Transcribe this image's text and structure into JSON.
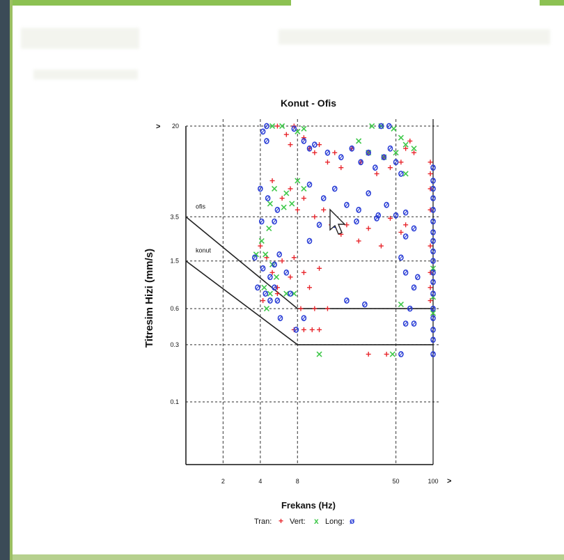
{
  "chart_data": {
    "type": "scatter",
    "title": "Konut - Ofis",
    "xlabel": "Frekans (Hz)",
    "ylabel": "Titresim Hizi (mm/s)",
    "x_scale": "log",
    "y_scale": "log",
    "xlim": [
      1.0,
      100
    ],
    "ylim": [
      0.03,
      20
    ],
    "x_ticks": [
      "2",
      "4",
      "8",
      "50",
      "100"
    ],
    "x_tick_values": [
      2,
      4,
      8,
      50,
      100
    ],
    "y_ticks": [
      "20",
      "3.5",
      "1.5",
      "0.6",
      "0.3",
      "0.1"
    ],
    "y_tick_values": [
      20,
      3.5,
      1.5,
      0.6,
      0.3,
      0.1
    ],
    "axis_arrow": ">",
    "grid": true,
    "limit_lines": [
      {
        "name": "ofis",
        "points": [
          [
            1.0,
            3.5
          ],
          [
            8,
            0.6
          ],
          [
            100,
            0.6
          ]
        ]
      },
      {
        "name": "konut",
        "points": [
          [
            1.0,
            1.5
          ],
          [
            8,
            0.3
          ],
          [
            100,
            0.3
          ]
        ]
      }
    ],
    "legend": {
      "placement": "bottom",
      "items": [
        {
          "label": "Tran:",
          "symbol": "+",
          "color": "#e8262c"
        },
        {
          "label": "Vert:",
          "symbol": "x",
          "color": "#3fc84a"
        },
        {
          "label": "Long:",
          "symbol": "ø",
          "color": "#2b3fd6"
        }
      ]
    },
    "series": [
      {
        "name": "Tran",
        "symbol": "+",
        "color": "#e8262c",
        "points": [
          [
            5.5,
            20
          ],
          [
            7.5,
            20
          ],
          [
            6.5,
            17
          ],
          [
            7,
            14
          ],
          [
            9,
            16
          ],
          [
            10,
            13
          ],
          [
            11,
            12
          ],
          [
            12,
            14
          ],
          [
            14,
            10
          ],
          [
            16,
            12
          ],
          [
            18,
            9
          ],
          [
            22,
            13
          ],
          [
            26,
            10
          ],
          [
            30,
            12
          ],
          [
            35,
            8
          ],
          [
            40,
            11
          ],
          [
            45,
            9
          ],
          [
            55,
            10
          ],
          [
            60,
            13
          ],
          [
            65,
            15
          ],
          [
            70,
            12
          ],
          [
            5,
            7
          ],
          [
            6,
            5
          ],
          [
            7,
            6
          ],
          [
            8,
            4
          ],
          [
            9,
            5
          ],
          [
            11,
            3.5
          ],
          [
            13,
            4
          ],
          [
            15,
            3
          ],
          [
            18,
            2.5
          ],
          [
            20,
            3
          ],
          [
            25,
            2.2
          ],
          [
            30,
            2.8
          ],
          [
            38,
            2
          ],
          [
            45,
            3.4
          ],
          [
            55,
            2.6
          ],
          [
            60,
            3
          ],
          [
            4,
            2
          ],
          [
            4.5,
            1.6
          ],
          [
            5,
            1.2
          ],
          [
            5.5,
            0.9
          ],
          [
            6,
            1.5
          ],
          [
            7,
            1.1
          ],
          [
            7.5,
            1.6
          ],
          [
            9,
            1.2
          ],
          [
            10,
            0.9
          ],
          [
            12,
            1.3
          ],
          [
            4.2,
            0.7
          ],
          [
            5.5,
            0.8
          ],
          [
            8.5,
            0.6
          ],
          [
            11,
            0.6
          ],
          [
            14,
            0.6
          ],
          [
            7.5,
            0.4
          ],
          [
            9,
            0.4
          ],
          [
            10.5,
            0.4
          ],
          [
            12,
            0.4
          ],
          [
            95,
            10
          ],
          [
            95,
            8
          ],
          [
            95,
            6
          ],
          [
            95,
            4
          ],
          [
            95,
            2
          ],
          [
            95,
            1.2
          ],
          [
            95,
            0.9
          ],
          [
            95,
            0.7
          ],
          [
            30,
            0.25
          ],
          [
            42,
            0.25
          ]
        ]
      },
      {
        "name": "Vert",
        "symbol": "x",
        "color": "#3fc84a",
        "points": [
          [
            5,
            20
          ],
          [
            6,
            20
          ],
          [
            8,
            18
          ],
          [
            9,
            19
          ],
          [
            32,
            20
          ],
          [
            38,
            20
          ],
          [
            48,
            19
          ],
          [
            55,
            16
          ],
          [
            60,
            14
          ],
          [
            25,
            15
          ],
          [
            30,
            12
          ],
          [
            40,
            11
          ],
          [
            50,
            12
          ],
          [
            70,
            13
          ],
          [
            60,
            8
          ],
          [
            4.8,
            4.5
          ],
          [
            5.2,
            6
          ],
          [
            6.2,
            4.2
          ],
          [
            6.5,
            5.5
          ],
          [
            8,
            7
          ],
          [
            9,
            6
          ],
          [
            7.2,
            4.5
          ],
          [
            3.7,
            1.7
          ],
          [
            4.1,
            2.2
          ],
          [
            4.4,
            1.7
          ],
          [
            4.7,
            2.8
          ],
          [
            5,
            1.4
          ],
          [
            5.4,
            1.1
          ],
          [
            4.3,
            0.9
          ],
          [
            4.5,
            0.6
          ],
          [
            4.8,
            0.8
          ],
          [
            6.5,
            0.8
          ],
          [
            7.5,
            0.8
          ],
          [
            55,
            0.65
          ],
          [
            100,
            0.75
          ],
          [
            100,
            1.3
          ],
          [
            100,
            0.55
          ],
          [
            12,
            0.25
          ],
          [
            47,
            0.25
          ]
        ]
      },
      {
        "name": "Long",
        "symbol": "ø",
        "color": "#2b3fd6",
        "points": [
          [
            4.5,
            20
          ],
          [
            4.2,
            18
          ],
          [
            4.5,
            15
          ],
          [
            7.5,
            19
          ],
          [
            9,
            15
          ],
          [
            10,
            13
          ],
          [
            11,
            14
          ],
          [
            14,
            12
          ],
          [
            18,
            11
          ],
          [
            22,
            13
          ],
          [
            26,
            10
          ],
          [
            30,
            12
          ],
          [
            34,
            9
          ],
          [
            40,
            11
          ],
          [
            45,
            13
          ],
          [
            50,
            10
          ],
          [
            55,
            8
          ],
          [
            38,
            20
          ],
          [
            44,
            20
          ],
          [
            4,
            6
          ],
          [
            4.6,
            5
          ],
          [
            5.5,
            4
          ],
          [
            5.2,
            3.2
          ],
          [
            4.1,
            3.2
          ],
          [
            10,
            6.5
          ],
          [
            13,
            5
          ],
          [
            16,
            6
          ],
          [
            20,
            4.4
          ],
          [
            25,
            4
          ],
          [
            30,
            5.5
          ],
          [
            36,
            3.6
          ],
          [
            42,
            4.4
          ],
          [
            50,
            3.6
          ],
          [
            60,
            3.8
          ],
          [
            70,
            2.8
          ],
          [
            60,
            2.4
          ],
          [
            35,
            3.4
          ],
          [
            24,
            3.2
          ],
          [
            16,
            3
          ],
          [
            12,
            3
          ],
          [
            10,
            2.2
          ],
          [
            3.6,
            1.6
          ],
          [
            4.2,
            1.3
          ],
          [
            4.8,
            1.1
          ],
          [
            5.2,
            1.4
          ],
          [
            5.7,
            1.7
          ],
          [
            5.2,
            0.9
          ],
          [
            6.5,
            1.2
          ],
          [
            7,
            0.8
          ],
          [
            3.8,
            0.9
          ],
          [
            4.4,
            0.8
          ],
          [
            4.8,
            0.7
          ],
          [
            5.5,
            0.7
          ],
          [
            7.8,
            0.4
          ],
          [
            5.8,
            0.5
          ],
          [
            9,
            0.5
          ],
          [
            55,
            1.6
          ],
          [
            60,
            1.2
          ],
          [
            70,
            0.9
          ],
          [
            65,
            0.6
          ],
          [
            75,
            1.1
          ],
          [
            60,
            0.45
          ],
          [
            70,
            0.45
          ],
          [
            100,
            9
          ],
          [
            100,
            7
          ],
          [
            100,
            6
          ],
          [
            100,
            5
          ],
          [
            100,
            4
          ],
          [
            100,
            3.2
          ],
          [
            100,
            2.6
          ],
          [
            100,
            2.2
          ],
          [
            100,
            1.8
          ],
          [
            100,
            1.5
          ],
          [
            100,
            1.2
          ],
          [
            100,
            1
          ],
          [
            100,
            0.8
          ],
          [
            100,
            0.6
          ],
          [
            100,
            0.5
          ],
          [
            100,
            0.4
          ],
          [
            100,
            0.33
          ],
          [
            100,
            0.25
          ],
          [
            55,
            0.25
          ],
          [
            20,
            0.7
          ],
          [
            28,
            0.65
          ]
        ]
      }
    ]
  }
}
